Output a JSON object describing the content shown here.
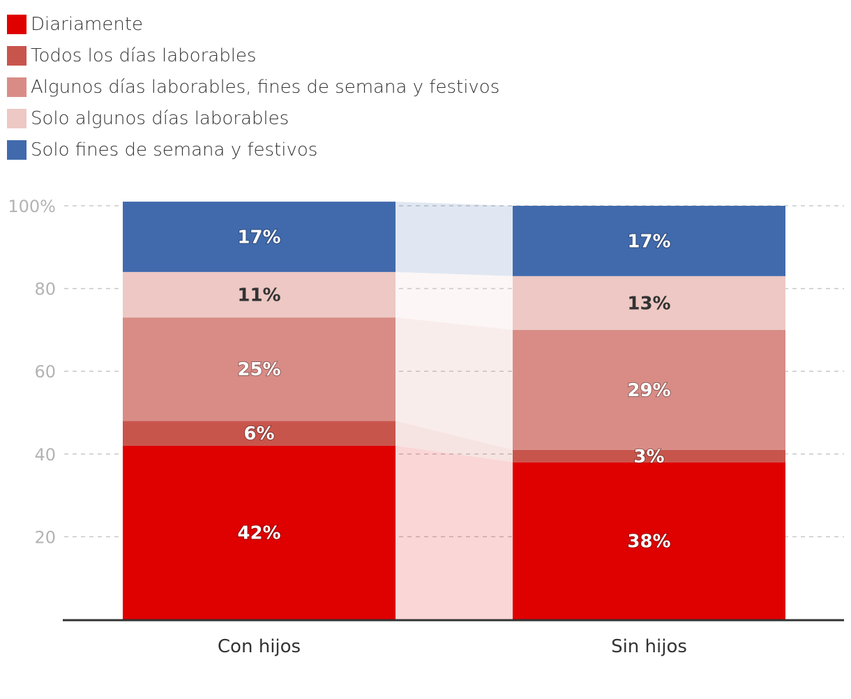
{
  "chart_data": {
    "type": "bar",
    "stacked": true,
    "categories": [
      "Con hijos",
      "Sin hijos"
    ],
    "series": [
      {
        "name": "Diariamente",
        "color": "#df0000",
        "values": [
          42,
          38
        ],
        "labels": [
          "42%",
          "38%"
        ],
        "label_color": "#ffffff"
      },
      {
        "name": "Todos los días laborables",
        "color": "#c8554c",
        "values": [
          6,
          3
        ],
        "labels": [
          "6%",
          "3%"
        ],
        "label_color": "#ffffff"
      },
      {
        "name": "Algunos días laborables, fines de semana y festivos",
        "color": "#d98c86",
        "values": [
          25,
          29
        ],
        "labels": [
          "25%",
          "29%"
        ],
        "label_color": "#ffffff"
      },
      {
        "name": "Solo algunos días laborables",
        "color": "#edc8c4",
        "values": [
          11,
          13
        ],
        "labels": [
          "11%",
          "13%"
        ],
        "label_color": "#333333"
      },
      {
        "name": "Solo fines de semana y festivos",
        "color": "#416aad",
        "values": [
          17,
          17
        ],
        "labels": [
          "17%",
          "17%"
        ],
        "label_color": "#ffffff"
      }
    ],
    "yticks": [
      {
        "value": 20,
        "label": "20"
      },
      {
        "value": 40,
        "label": "40"
      },
      {
        "value": 60,
        "label": "60"
      },
      {
        "value": 80,
        "label": "80"
      },
      {
        "value": 100,
        "label": "100%"
      }
    ],
    "ylim": [
      0,
      100
    ],
    "grid": true,
    "legend": "top-left",
    "title": "",
    "xlabel": "",
    "ylabel": ""
  }
}
